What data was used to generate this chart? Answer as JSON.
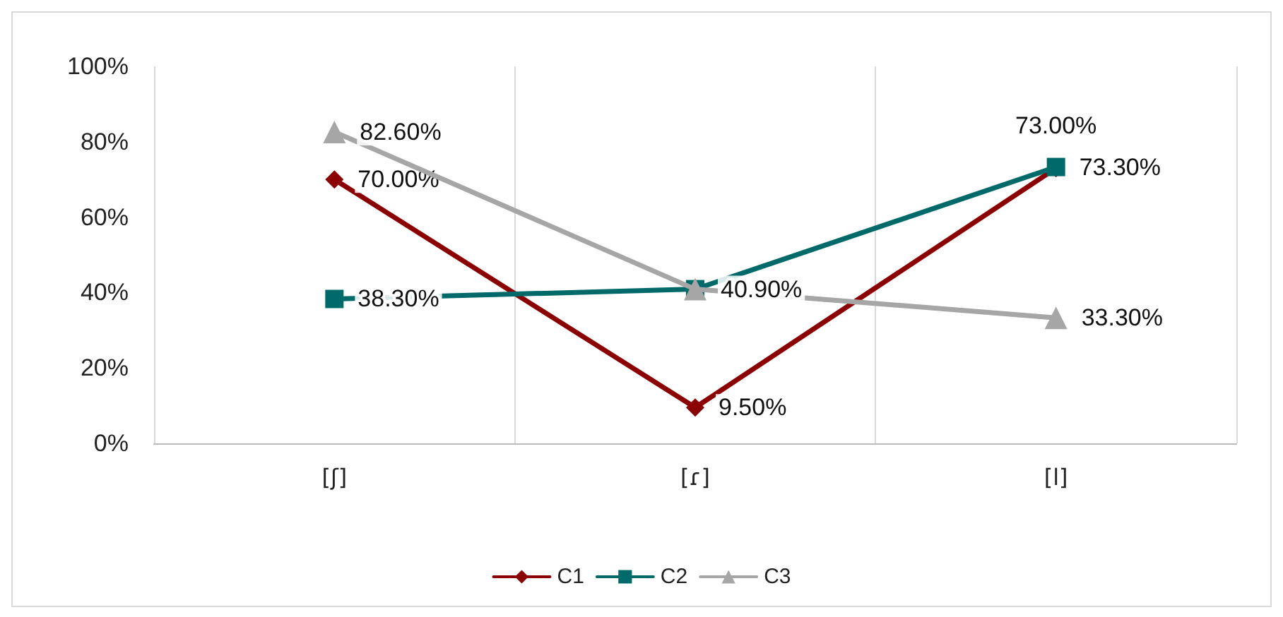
{
  "chart_data": {
    "type": "line",
    "categories": [
      "[ʃ]",
      "[ɾ]",
      "[l]"
    ],
    "series": [
      {
        "name": "C1",
        "color": "#8b0000",
        "marker": "diamond",
        "values": [
          70.0,
          9.5,
          73.0
        ],
        "value_labels": [
          "70.00%",
          "9.50%",
          "73.00%"
        ]
      },
      {
        "name": "C2",
        "color": "#006a6a",
        "marker": "square",
        "values": [
          38.3,
          40.9,
          73.3
        ],
        "value_labels": [
          "38.30%",
          null,
          "73.30%"
        ]
      },
      {
        "name": "C3",
        "color": "#a6a6a6",
        "marker": "triangle",
        "values": [
          82.6,
          40.9,
          33.3
        ],
        "value_labels": [
          "82.60%",
          "40.90%",
          "33.30%"
        ]
      }
    ],
    "ylim": [
      0,
      100
    ],
    "yticks": [
      {
        "value": 0,
        "label": "0%"
      },
      {
        "value": 20,
        "label": "20%"
      },
      {
        "value": 40,
        "label": "40%"
      },
      {
        "value": 60,
        "label": "60%"
      },
      {
        "value": 80,
        "label": "80%"
      },
      {
        "value": 100,
        "label": "100%"
      }
    ],
    "grid": "x",
    "legend": "bottom",
    "line_style": "solid"
  }
}
